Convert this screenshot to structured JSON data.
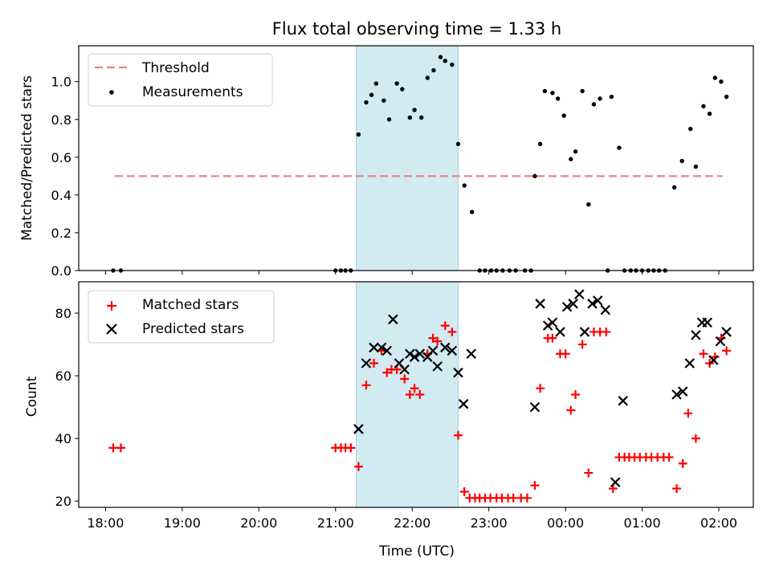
{
  "chart_data": [
    {
      "type": "scatter",
      "title": "Flux total observing time = 1.33 h",
      "xlabel": "",
      "ylabel": "Matched/Predicted stars",
      "xlim": [
        -0.35,
        8.45
      ],
      "ylim": [
        0,
        1.19
      ],
      "yticks": [
        0.0,
        0.2,
        0.4,
        0.6,
        0.8,
        1.0
      ],
      "ytick_labels": [
        "0.0",
        "0.2",
        "0.4",
        "0.6",
        "0.8",
        "1.0"
      ],
      "highlight_span": [
        3.27,
        4.6
      ],
      "legend": {
        "position": "top-left",
        "entries": [
          {
            "label": "Threshold",
            "style": "dashed-line",
            "color": "#f08080"
          },
          {
            "label": "Measurements",
            "style": "dot",
            "color": "#000000"
          }
        ]
      },
      "threshold": {
        "name": "Threshold",
        "value": 0.5,
        "x_range": [
          0.12,
          8.05
        ],
        "color": "#f08080"
      },
      "series": [
        {
          "name": "Measurements",
          "marker": "dot",
          "color": "#000000",
          "points": [
            [
              0.1,
              0
            ],
            [
              0.2,
              0
            ],
            [
              3.0,
              0
            ],
            [
              3.07,
              0
            ],
            [
              3.13,
              0
            ],
            [
              3.2,
              0
            ],
            [
              3.3,
              0.72
            ],
            [
              3.4,
              0.89
            ],
            [
              3.47,
              0.93
            ],
            [
              3.53,
              0.99
            ],
            [
              3.63,
              0.9
            ],
            [
              3.7,
              0.8
            ],
            [
              3.8,
              0.99
            ],
            [
              3.87,
              0.96
            ],
            [
              3.97,
              0.81
            ],
            [
              4.03,
              0.85
            ],
            [
              4.12,
              0.81
            ],
            [
              4.2,
              1.02
            ],
            [
              4.28,
              1.06
            ],
            [
              4.37,
              1.13
            ],
            [
              4.43,
              1.11
            ],
            [
              4.52,
              1.09
            ],
            [
              4.6,
              0.67
            ],
            [
              4.68,
              0.45
            ],
            [
              4.78,
              0.31
            ],
            [
              4.88,
              0
            ],
            [
              4.95,
              0
            ],
            [
              5.03,
              0
            ],
            [
              5.1,
              0
            ],
            [
              5.18,
              0
            ],
            [
              5.27,
              0
            ],
            [
              5.35,
              0
            ],
            [
              5.47,
              0
            ],
            [
              5.55,
              0
            ],
            [
              5.6,
              0.5
            ],
            [
              5.67,
              0.67
            ],
            [
              5.73,
              0.95
            ],
            [
              5.83,
              0.94
            ],
            [
              5.9,
              0.91
            ],
            [
              5.98,
              0.82
            ],
            [
              6.07,
              0.59
            ],
            [
              6.13,
              0.63
            ],
            [
              6.22,
              0.95
            ],
            [
              6.3,
              0.35
            ],
            [
              6.37,
              0.88
            ],
            [
              6.45,
              0.91
            ],
            [
              6.55,
              0
            ],
            [
              6.6,
              0.92
            ],
            [
              6.7,
              0.65
            ],
            [
              6.77,
              0
            ],
            [
              6.85,
              0
            ],
            [
              6.92,
              0
            ],
            [
              7.0,
              0
            ],
            [
              7.08,
              0
            ],
            [
              7.15,
              0
            ],
            [
              7.22,
              0
            ],
            [
              7.3,
              0
            ],
            [
              7.42,
              0.44
            ],
            [
              7.52,
              0.58
            ],
            [
              7.63,
              0.75
            ],
            [
              7.7,
              0.55
            ],
            [
              7.8,
              0.87
            ],
            [
              7.88,
              0.83
            ],
            [
              7.95,
              1.02
            ],
            [
              8.03,
              1.0
            ],
            [
              8.1,
              0.92
            ]
          ]
        }
      ]
    },
    {
      "type": "scatter",
      "title": "",
      "xlabel": "Time (UTC)",
      "ylabel": "Count",
      "xlim": [
        -0.35,
        8.45
      ],
      "ylim": [
        18,
        90
      ],
      "yticks": [
        20,
        40,
        60,
        80
      ],
      "ytick_labels": [
        "20",
        "40",
        "60",
        "80"
      ],
      "xticks": [
        0,
        1,
        2,
        3,
        4,
        5,
        6,
        7,
        8
      ],
      "xtick_labels": [
        "18:00",
        "19:00",
        "20:00",
        "21:00",
        "22:00",
        "23:00",
        "00:00",
        "01:00",
        "02:00"
      ],
      "highlight_span": [
        3.27,
        4.6
      ],
      "legend": {
        "position": "top-left",
        "entries": [
          {
            "label": "Matched stars",
            "style": "plus",
            "color": "#ff0000"
          },
          {
            "label": "Predicted stars",
            "style": "x",
            "color": "#000000"
          }
        ]
      },
      "series": [
        {
          "name": "Matched stars",
          "marker": "plus",
          "color": "#ff0000",
          "points": [
            [
              0.1,
              37
            ],
            [
              0.2,
              37
            ],
            [
              3.0,
              37
            ],
            [
              3.07,
              37
            ],
            [
              3.13,
              37
            ],
            [
              3.2,
              37
            ],
            [
              3.3,
              31
            ],
            [
              3.4,
              57
            ],
            [
              3.5,
              64
            ],
            [
              3.6,
              68
            ],
            [
              3.67,
              61
            ],
            [
              3.73,
              62
            ],
            [
              3.8,
              62
            ],
            [
              3.9,
              59
            ],
            [
              3.97,
              54
            ],
            [
              4.03,
              56
            ],
            [
              4.1,
              54
            ],
            [
              4.2,
              67
            ],
            [
              4.27,
              72
            ],
            [
              4.33,
              71
            ],
            [
              4.43,
              76
            ],
            [
              4.52,
              74
            ],
            [
              4.6,
              41
            ],
            [
              4.68,
              23
            ],
            [
              4.75,
              21
            ],
            [
              4.82,
              21
            ],
            [
              4.88,
              21
            ],
            [
              4.95,
              21
            ],
            [
              5.02,
              21
            ],
            [
              5.1,
              21
            ],
            [
              5.17,
              21
            ],
            [
              5.25,
              21
            ],
            [
              5.32,
              21
            ],
            [
              5.42,
              21
            ],
            [
              5.5,
              21
            ],
            [
              5.6,
              25
            ],
            [
              5.67,
              56
            ],
            [
              5.77,
              72
            ],
            [
              5.83,
              72
            ],
            [
              5.93,
              67
            ],
            [
              6.0,
              67
            ],
            [
              6.07,
              49
            ],
            [
              6.13,
              54
            ],
            [
              6.22,
              70
            ],
            [
              6.3,
              29
            ],
            [
              6.37,
              74
            ],
            [
              6.45,
              74
            ],
            [
              6.53,
              74
            ],
            [
              6.62,
              24
            ],
            [
              6.7,
              34
            ],
            [
              6.77,
              34
            ],
            [
              6.83,
              34
            ],
            [
              6.9,
              34
            ],
            [
              6.97,
              34
            ],
            [
              7.05,
              34
            ],
            [
              7.12,
              34
            ],
            [
              7.2,
              34
            ],
            [
              7.28,
              34
            ],
            [
              7.35,
              34
            ],
            [
              7.45,
              24
            ],
            [
              7.53,
              32
            ],
            [
              7.6,
              48
            ],
            [
              7.7,
              40
            ],
            [
              7.8,
              67
            ],
            [
              7.88,
              64
            ],
            [
              7.95,
              66
            ],
            [
              8.03,
              72
            ],
            [
              8.1,
              68
            ]
          ]
        },
        {
          "name": "Predicted stars",
          "marker": "x",
          "color": "#000000",
          "points": [
            [
              3.3,
              43
            ],
            [
              3.4,
              64
            ],
            [
              3.5,
              69
            ],
            [
              3.6,
              69
            ],
            [
              3.67,
              68
            ],
            [
              3.75,
              78
            ],
            [
              3.83,
              64
            ],
            [
              3.9,
              62
            ],
            [
              3.97,
              67
            ],
            [
              4.03,
              66
            ],
            [
              4.1,
              67
            ],
            [
              4.2,
              66
            ],
            [
              4.27,
              68
            ],
            [
              4.33,
              63
            ],
            [
              4.43,
              69
            ],
            [
              4.52,
              68
            ],
            [
              4.6,
              61
            ],
            [
              4.67,
              51
            ],
            [
              4.77,
              67
            ],
            [
              5.6,
              50
            ],
            [
              5.67,
              83
            ],
            [
              5.77,
              76
            ],
            [
              5.83,
              77
            ],
            [
              5.93,
              74
            ],
            [
              6.02,
              82
            ],
            [
              6.1,
              83
            ],
            [
              6.18,
              86
            ],
            [
              6.25,
              74
            ],
            [
              6.35,
              83
            ],
            [
              6.42,
              84
            ],
            [
              6.52,
              81
            ],
            [
              6.65,
              26
            ],
            [
              6.75,
              52
            ],
            [
              7.45,
              54
            ],
            [
              7.53,
              55
            ],
            [
              7.62,
              64
            ],
            [
              7.7,
              73
            ],
            [
              7.78,
              77
            ],
            [
              7.85,
              77
            ],
            [
              7.93,
              65
            ],
            [
              8.02,
              71
            ],
            [
              8.1,
              74
            ]
          ]
        }
      ]
    }
  ]
}
